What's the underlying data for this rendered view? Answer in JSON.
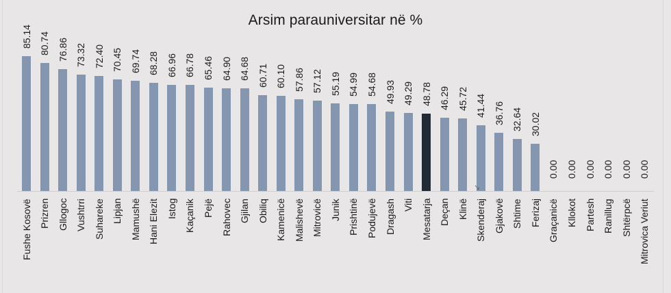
{
  "chart_data": {
    "type": "bar",
    "title": "Arsim parauniversitar në %",
    "xlabel": "",
    "ylabel": "",
    "ylim": [
      0,
      90
    ],
    "grid": false,
    "legend": null,
    "data_labels": true,
    "categories": [
      "Fushe Kosovë",
      "Prizren",
      "Gllogoc",
      "Vushtrri",
      "Suhareke",
      "Lipjan",
      "Mamushë",
      "Hani Elezit",
      "Istog",
      "Kaçanik",
      "Pejë",
      "Rahovec",
      "Gjilan",
      "Obiliq",
      "Kamenicë",
      "Malishevë",
      "Mitrovicë",
      "Junik",
      "Prishtinë",
      "Podujevë",
      "Dragash",
      "Viti",
      "Mesatarja",
      "Deçan",
      "Klinë",
      "Skenderaj",
      "Gjakovë",
      "Shtime",
      "Ferizaj",
      "Graçanicë",
      "Kllokot",
      "Partesh",
      "Ranillug",
      "Shtërpcë",
      "Mitrovica Veriut"
    ],
    "values": [
      85.14,
      80.74,
      76.86,
      73.32,
      72.4,
      70.45,
      69.74,
      68.28,
      66.96,
      66.78,
      65.46,
      64.9,
      64.68,
      60.71,
      60.1,
      57.86,
      57.12,
      55.19,
      54.99,
      54.68,
      49.93,
      49.29,
      48.78,
      46.29,
      45.72,
      41.44,
      36.76,
      32.64,
      30.02,
      0.0,
      0.0,
      0.0,
      0.0,
      0.0,
      0.0
    ],
    "value_labels": [
      "85.14",
      "80.74",
      "76.86",
      "73.32",
      "72.40",
      "70.45",
      "69.74",
      "68.28",
      "66.96",
      "66.78",
      "65.46",
      "64.90",
      "64.68",
      "60.71",
      "60.10",
      "57.86",
      "57.12",
      "55.19",
      "54.99",
      "54.68",
      "49.93",
      "49.29",
      "48.78",
      "46.29",
      "45.72",
      "41.44",
      "36.76",
      "32.64",
      "30.02",
      "0.00",
      "0.00",
      "0.00",
      "0.00",
      "0.00",
      "0.00"
    ],
    "highlight_category": "Mesatarja",
    "colors": {
      "bar": "#8496b0",
      "highlight": "#222a35",
      "background": "#e8e6e7",
      "axis": "#cfcfcf"
    }
  }
}
